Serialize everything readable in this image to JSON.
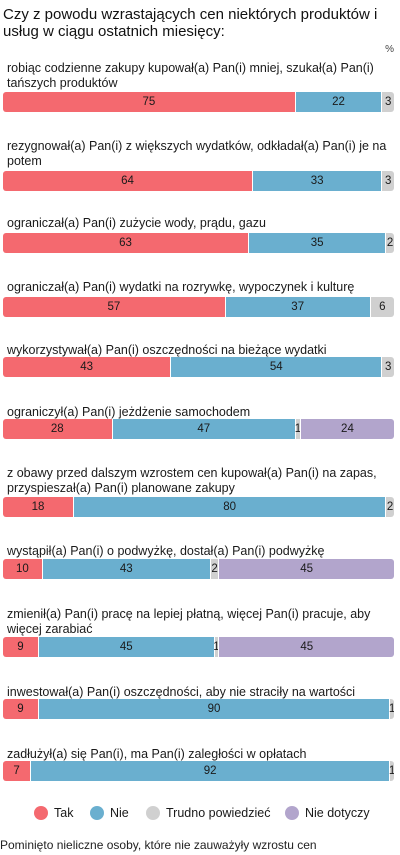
{
  "title": "Czy z powodu wzrastających cen niektórych produktów i usług w ciągu ostatnich miesięcy:",
  "unit": "%",
  "footnote": "Pominięto nieliczne osoby, które nie zauważyły wzrostu cen",
  "colors": {
    "tak": "#f4696f",
    "nie": "#6aafcf",
    "trudno": "#d0d0d0",
    "nie_dotyczy": "#b2a5cc"
  },
  "chart_data": {
    "type": "bar",
    "orientation": "horizontal",
    "stacked": true,
    "title": "Czy z powodu wzrastających cen niektórych produktów i usług w ciągu ostatnich miesięcy:",
    "unit": "%",
    "legend_position": "bottom",
    "xlim": [
      0,
      100
    ],
    "grid": false,
    "categories": [
      "robiąc codzienne zakupy kupował(a) Pan(i) mniej, szukał(a) Pan(i) tańszych produktów",
      "rezygnował(a) Pan(i) z większych wydatków, odkładał(a) Pan(i) je na potem",
      "ograniczał(a) Pan(i) zużycie wody, prądu, gazu",
      "ograniczał(a) Pan(i) wydatki na rozrywkę, wypoczynek i kulturę",
      "wykorzystywał(a) Pan(i) oszczędności na bieżące wydatki",
      "ograniczył(a) Pan(i) jeżdżenie samochodem",
      "z obawy przed dalszym wzrostem cen kupował(a) Pan(i) na zapas, przyspieszał(a) Pan(i) planowane zakupy",
      "wystąpił(a) Pan(i) o podwyżkę, dostał(a) Pan(i) podwyżkę",
      "zmienił(a) Pan(i) pracę na lepiej płatną, więcej Pan(i) pracuje, aby więcej zarabiać",
      "inwestował(a) Pan(i) oszczędności, aby nie straciły na wartości",
      "zadłużył(a) się Pan(i), ma Pan(i) zaległości w opłatach"
    ],
    "series": [
      {
        "name": "Tak",
        "color": "#f4696f",
        "values": [
          75,
          64,
          63,
          57,
          43,
          28,
          18,
          10,
          9,
          9,
          7
        ]
      },
      {
        "name": "Nie",
        "color": "#6aafcf",
        "values": [
          22,
          33,
          35,
          37,
          54,
          47,
          80,
          43,
          45,
          90,
          92
        ]
      },
      {
        "name": "Trudno powiedzieć",
        "color": "#d0d0d0",
        "values": [
          3,
          3,
          2,
          6,
          3,
          1,
          2,
          2,
          1,
          1,
          1
        ]
      },
      {
        "name": "Nie dotyczy",
        "color": "#b2a5cc",
        "values": [
          0,
          0,
          0,
          0,
          0,
          24,
          0,
          45,
          45,
          0,
          0
        ]
      }
    ]
  }
}
